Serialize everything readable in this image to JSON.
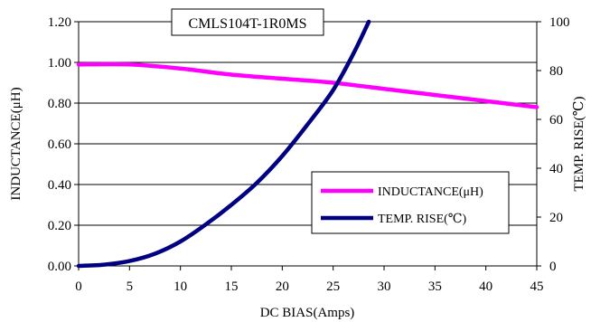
{
  "chart_data": {
    "type": "line",
    "title": "CMLS104T-1R0MS",
    "xlabel": "DC BIAS(Amps)",
    "ylabel_left": "INDUCTANCE(μH)",
    "ylabel_right": "TEMP. RISE(℃)",
    "xlim": [
      0,
      45
    ],
    "ylim_left": [
      0,
      1.2
    ],
    "ylim_right": [
      0,
      100
    ],
    "x_ticks": [
      "0",
      "5",
      "10",
      "15",
      "20",
      "25",
      "30",
      "35",
      "40",
      "45"
    ],
    "y_left_ticks": [
      "0.00",
      "0.20",
      "0.40",
      "0.60",
      "0.80",
      "1.00",
      "1.20"
    ],
    "y_right_ticks": [
      "0",
      "20",
      "40",
      "60",
      "80",
      "100"
    ],
    "grid": "horizontal",
    "legend_position": "lower-right",
    "series": [
      {
        "name": "INDUCTANCE(μH)",
        "axis": "left",
        "color": "#ff00ff",
        "x": [
          0,
          5,
          10,
          15,
          20,
          25,
          30,
          35,
          40,
          45
        ],
        "y": [
          0.99,
          0.99,
          0.97,
          0.94,
          0.92,
          0.9,
          0.87,
          0.84,
          0.81,
          0.78
        ]
      },
      {
        "name": "TEMP. RISE(℃)",
        "axis": "right",
        "color": "#000080",
        "x": [
          0,
          2.5,
          5,
          7.5,
          10,
          12.5,
          15,
          17.5,
          20,
          22.5,
          25,
          27,
          28.5
        ],
        "y": [
          0,
          0.5,
          2,
          5,
          10,
          17,
          25,
          34,
          45,
          58,
          72,
          87,
          100
        ]
      }
    ]
  }
}
